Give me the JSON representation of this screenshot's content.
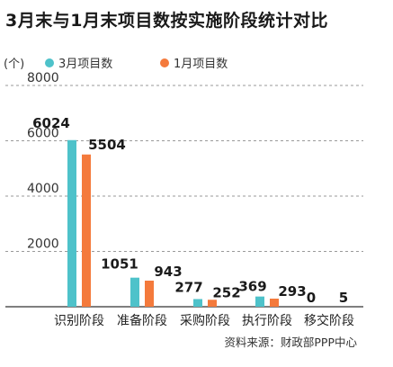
{
  "chart_data": {
    "type": "bar",
    "title": "3月末与1月末项目数按实施阶段统计对比",
    "ylabel": "(个)",
    "categories": [
      "识别阶段",
      "准备阶段",
      "采购阶段",
      "执行阶段",
      "移交阶段"
    ],
    "series": [
      {
        "name": "3月项目数",
        "values": [
          6024,
          1051,
          277,
          369,
          0
        ],
        "color": "#4ec2ca"
      },
      {
        "name": "1月项目数",
        "values": [
          5504,
          943,
          252,
          293,
          5
        ],
        "color": "#f47a3c"
      }
    ],
    "yticks": [
      "8000",
      "6000",
      "4000",
      "2000"
    ],
    "ylim": [
      0,
      8000
    ],
    "grid": true,
    "legend": "top",
    "source": "资料来源：财政部PPP中心"
  }
}
